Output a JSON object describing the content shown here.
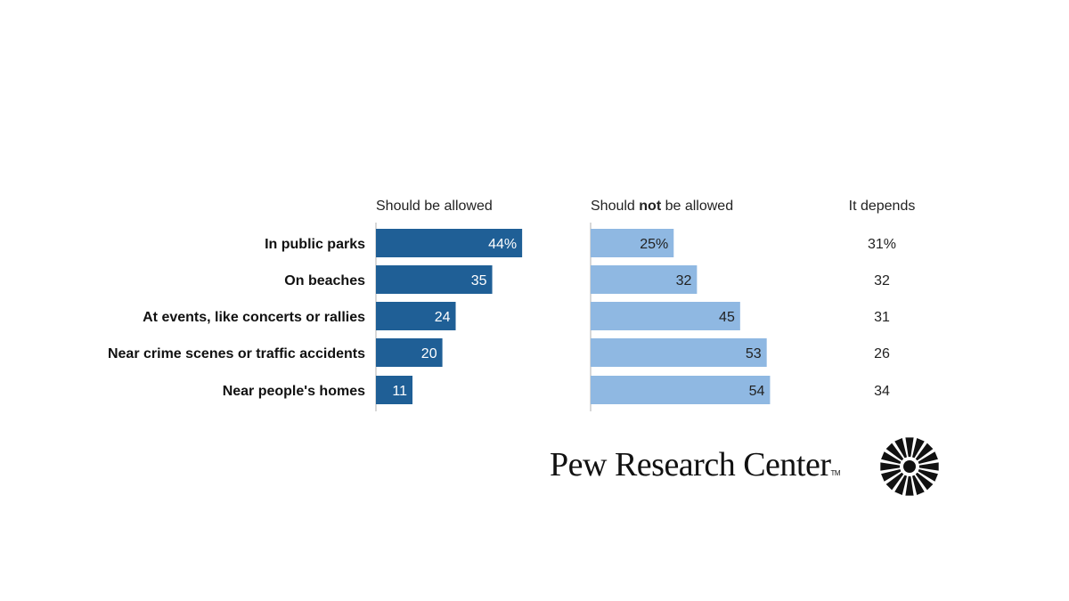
{
  "chart_data": {
    "type": "bar",
    "categories": [
      "In public parks",
      "On beaches",
      "At events, like concerts or rallies",
      "Near crime scenes or traffic accidents",
      "Near people's homes"
    ],
    "series": [
      {
        "name": "Should be allowed",
        "name_parts": [
          "Should be allowed"
        ],
        "values": [
          44,
          35,
          24,
          20,
          11
        ],
        "labels": [
          "44%",
          "35",
          "24",
          "20",
          "11"
        ],
        "color": "#1f5f96",
        "label_color": "#ffffff"
      },
      {
        "name": "Should not be allowed",
        "name_parts": [
          "Should ",
          "not",
          " be allowed"
        ],
        "values": [
          25,
          32,
          45,
          53,
          54
        ],
        "labels": [
          "25%",
          "32",
          "45",
          "53",
          "54"
        ],
        "color": "#8fb8e2",
        "label_color": "#222222"
      },
      {
        "name": "It depends",
        "name_parts": [
          "It depends"
        ],
        "values": [
          31,
          32,
          31,
          26,
          34
        ],
        "labels": [
          "31%",
          "32",
          "31",
          "26",
          "34"
        ],
        "display": "text"
      }
    ],
    "xlim": [
      0,
      60
    ],
    "grid": false
  },
  "logo": {
    "text": "Pew Research Center",
    "tm": "TM"
  }
}
